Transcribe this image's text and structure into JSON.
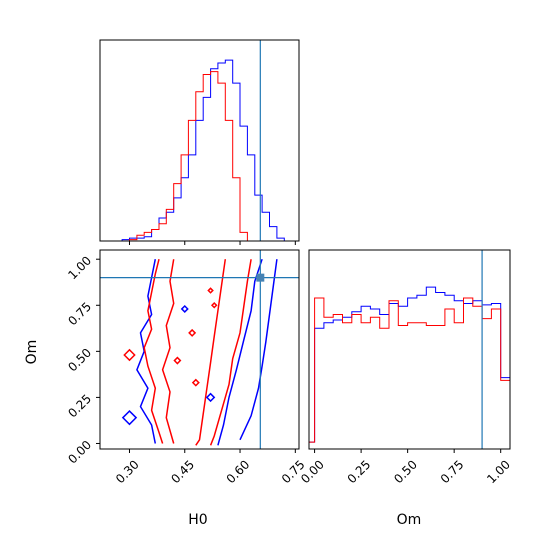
{
  "chart_data": {
    "type": "corner",
    "truth": {
      "H0": 0.655,
      "Om": 0.9
    },
    "colors": {
      "series_a": "#0000ff",
      "series_b": "#ff0000",
      "truth": "#1f77b4",
      "truth_marker": "#4682b4"
    },
    "axes": {
      "h0": {
        "label": "H0",
        "range": [
          0.22,
          0.76
        ],
        "ticks": [
          "0.30",
          "0.45",
          "0.60",
          "0.75"
        ],
        "tick_values": [
          0.3,
          0.45,
          0.6,
          0.75
        ]
      },
      "om": {
        "label": "Om",
        "range": [
          -0.03,
          1.05
        ],
        "ticks": [
          "0.00",
          "0.25",
          "0.50",
          "0.75",
          "1.00"
        ],
        "tick_values": [
          0.0,
          0.25,
          0.5,
          0.75,
          1.0
        ]
      }
    },
    "hist_h0": {
      "bin_edges": [
        0.22,
        0.24,
        0.26,
        0.28,
        0.3,
        0.32,
        0.34,
        0.36,
        0.38,
        0.4,
        0.42,
        0.44,
        0.46,
        0.48,
        0.5,
        0.52,
        0.54,
        0.56,
        0.58,
        0.6,
        0.62,
        0.64,
        0.66,
        0.68,
        0.7,
        0.72,
        0.74,
        0.76
      ],
      "series": [
        {
          "color_key": "series_a",
          "values": [
            0,
            0,
            0,
            0.5,
            1,
            1,
            1.5,
            4,
            8,
            10,
            15,
            22,
            30,
            42,
            50,
            60,
            62,
            63,
            55,
            40,
            30,
            16,
            10,
            5,
            1,
            0,
            0
          ]
        },
        {
          "color_key": "series_b",
          "values": [
            0,
            0,
            0,
            0,
            0.5,
            2,
            3,
            4,
            6,
            11,
            20,
            30,
            42,
            52,
            58,
            59,
            55,
            42,
            22,
            3,
            0,
            0,
            0,
            0,
            0,
            0,
            0
          ]
        }
      ],
      "ymax": 70
    },
    "hist_om": {
      "bin_edges": [
        -0.03,
        0.0,
        0.05,
        0.1,
        0.15,
        0.2,
        0.25,
        0.3,
        0.35,
        0.4,
        0.45,
        0.5,
        0.55,
        0.6,
        0.65,
        0.7,
        0.75,
        0.8,
        0.85,
        0.9,
        0.95,
        1.0,
        1.05
      ],
      "series": [
        {
          "color_key": "series_a",
          "values": [
            5,
            88,
            92,
            94,
            96,
            100,
            104,
            102,
            98,
            106,
            104,
            110,
            112,
            118,
            114,
            112,
            108,
            106,
            108,
            105,
            106,
            52
          ]
        },
        {
          "color_key": "series_b",
          "values": [
            5,
            110,
            96,
            98,
            92,
            98,
            92,
            96,
            88,
            108,
            90,
            92,
            92,
            90,
            90,
            102,
            92,
            110,
            104,
            95,
            102,
            50
          ]
        }
      ],
      "ymax": 145
    },
    "contours": [
      {
        "color_key": "series_a",
        "points": [
          [
            0.7,
            1.0
          ],
          [
            0.69,
            0.85
          ],
          [
            0.68,
            0.7
          ],
          [
            0.67,
            0.55
          ],
          [
            0.66,
            0.42
          ],
          [
            0.65,
            0.3
          ],
          [
            0.63,
            0.15
          ],
          [
            0.6,
            0.02
          ]
        ]
      },
      {
        "color_key": "series_a",
        "points": [
          [
            0.66,
            1.0
          ],
          [
            0.64,
            0.88
          ],
          [
            0.63,
            0.72
          ],
          [
            0.61,
            0.56
          ],
          [
            0.59,
            0.4
          ],
          [
            0.57,
            0.25
          ],
          [
            0.555,
            0.1
          ],
          [
            0.54,
            -0.01
          ]
        ]
      },
      {
        "color_key": "series_a",
        "points": [
          [
            0.37,
            1.0
          ],
          [
            0.36,
            0.9
          ],
          [
            0.35,
            0.8
          ],
          [
            0.36,
            0.7
          ],
          [
            0.33,
            0.6
          ],
          [
            0.34,
            0.5
          ],
          [
            0.32,
            0.4
          ],
          [
            0.35,
            0.3
          ],
          [
            0.33,
            0.2
          ],
          [
            0.36,
            0.1
          ],
          [
            0.37,
            0.0
          ]
        ]
      },
      {
        "color_key": "series_b",
        "points": [
          [
            0.63,
            1.0
          ],
          [
            0.62,
            0.88
          ],
          [
            0.61,
            0.74
          ],
          [
            0.6,
            0.6
          ],
          [
            0.58,
            0.46
          ],
          [
            0.57,
            0.32
          ],
          [
            0.55,
            0.18
          ],
          [
            0.53,
            0.04
          ],
          [
            0.52,
            -0.01
          ]
        ]
      },
      {
        "color_key": "series_b",
        "points": [
          [
            0.56,
            1.0
          ],
          [
            0.55,
            0.86
          ],
          [
            0.54,
            0.72
          ],
          [
            0.53,
            0.58
          ],
          [
            0.52,
            0.44
          ],
          [
            0.51,
            0.3
          ],
          [
            0.5,
            0.16
          ],
          [
            0.49,
            0.02
          ],
          [
            0.48,
            -0.01
          ]
        ]
      },
      {
        "color_key": "series_b",
        "points": [
          [
            0.42,
            1.0
          ],
          [
            0.41,
            0.88
          ],
          [
            0.42,
            0.76
          ],
          [
            0.4,
            0.64
          ],
          [
            0.41,
            0.52
          ],
          [
            0.39,
            0.4
          ],
          [
            0.41,
            0.28
          ],
          [
            0.4,
            0.14
          ],
          [
            0.42,
            0.0
          ]
        ]
      },
      {
        "color_key": "series_b",
        "points": [
          [
            0.38,
            1.0
          ],
          [
            0.37,
            0.92
          ],
          [
            0.36,
            0.82
          ],
          [
            0.35,
            0.72
          ],
          [
            0.36,
            0.62
          ],
          [
            0.34,
            0.52
          ],
          [
            0.35,
            0.42
          ],
          [
            0.37,
            0.3
          ],
          [
            0.36,
            0.18
          ],
          [
            0.38,
            0.06
          ],
          [
            0.39,
            0.0
          ]
        ]
      }
    ],
    "blobs": [
      {
        "color_key": "series_a",
        "cx": 0.3,
        "cy": 0.14,
        "r": 0.018
      },
      {
        "color_key": "series_a",
        "cx": 0.45,
        "cy": 0.73,
        "r": 0.008
      },
      {
        "color_key": "series_a",
        "cx": 0.52,
        "cy": 0.25,
        "r": 0.01
      },
      {
        "color_key": "series_b",
        "cx": 0.3,
        "cy": 0.48,
        "r": 0.014
      },
      {
        "color_key": "series_b",
        "cx": 0.43,
        "cy": 0.45,
        "r": 0.008
      },
      {
        "color_key": "series_b",
        "cx": 0.47,
        "cy": 0.6,
        "r": 0.008
      },
      {
        "color_key": "series_b",
        "cx": 0.48,
        "cy": 0.33,
        "r": 0.008
      },
      {
        "color_key": "series_b",
        "cx": 0.53,
        "cy": 0.75,
        "r": 0.006
      },
      {
        "color_key": "series_b",
        "cx": 0.52,
        "cy": 0.83,
        "r": 0.006
      }
    ]
  }
}
